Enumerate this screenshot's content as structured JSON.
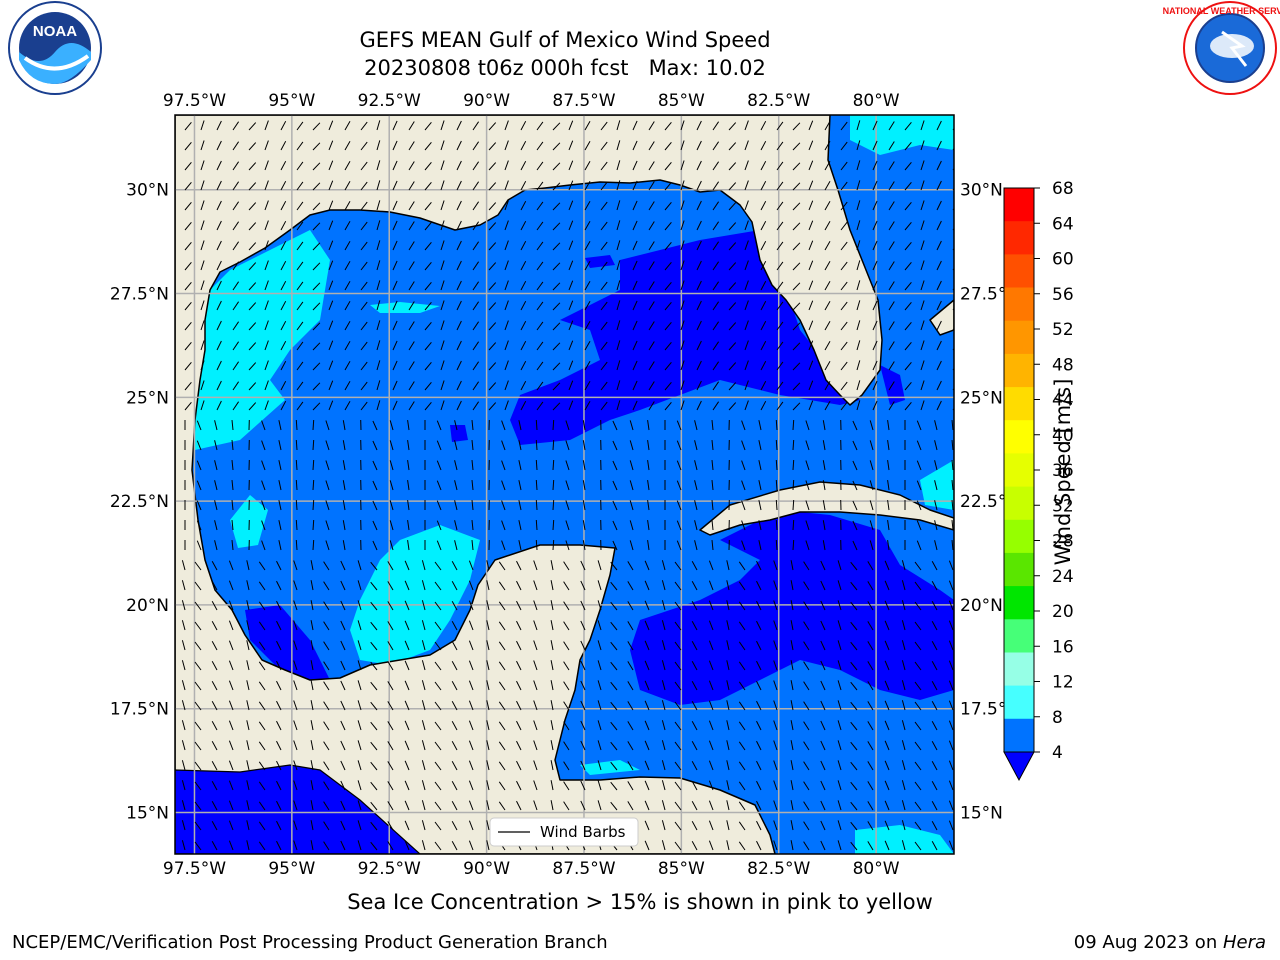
{
  "title": {
    "line1": "GEFS MEAN Gulf of Mexico Wind Speed",
    "line2": "20230808 t06z 000h fcst   Max: 10.02"
  },
  "map": {
    "lon_labels": [
      "97.5°W",
      "95°W",
      "92.5°W",
      "90°W",
      "87.5°W",
      "85°W",
      "82.5°W",
      "80°W"
    ],
    "lon_values": [
      -97.5,
      -95,
      -92.5,
      -90,
      -87.5,
      -85,
      -82.5,
      -80
    ],
    "lat_labels": [
      "30°N",
      "27.5°N",
      "25°N",
      "22.5°N",
      "20°N",
      "17.5°N",
      "15°N"
    ],
    "lat_values": [
      30,
      27.5,
      25,
      22.5,
      20,
      17.5,
      15
    ],
    "lon_range": [
      -98,
      -78
    ],
    "lat_range": [
      14,
      31.8
    ],
    "grid": true,
    "land_color": "#efecdc",
    "ocean_color": "#0073ff"
  },
  "legend": {
    "entry": "Wind Barbs",
    "placement": "bottom-center"
  },
  "colorbar": {
    "label": "Wind Speed [m/s]",
    "ticks": [
      "68",
      "64",
      "60",
      "56",
      "52",
      "48",
      "44",
      "40",
      "36",
      "32",
      "28",
      "24",
      "20",
      "16",
      "12",
      "8",
      "4"
    ],
    "colors": [
      "#ff0000",
      "#ff2800",
      "#ff5000",
      "#ff7800",
      "#ff9600",
      "#ffb400",
      "#ffdc00",
      "#ffff00",
      "#e6ff00",
      "#c8ff00",
      "#96ff00",
      "#5ae600",
      "#00e600",
      "#46ff78",
      "#96ffe6",
      "#46ffff",
      "#00f0ff",
      "#0073ff"
    ],
    "under_color": "#0000ff"
  },
  "note": "Sea Ice Concentration > 15% is shown in pink to yellow",
  "footer": {
    "left": "NCEP/EMC/Verification Post Processing Product Generation Branch",
    "date": "09 Aug 2023 on ",
    "host": "Hera"
  },
  "logos": {
    "noaa": "NOAA",
    "nws": "NATIONAL WEATHER SERVICE"
  }
}
